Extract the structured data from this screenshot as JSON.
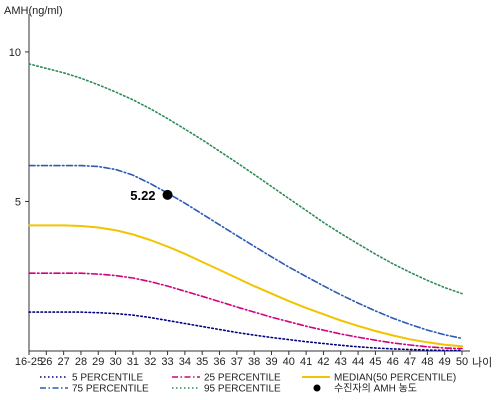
{
  "chart_data": {
    "type": "line",
    "ylabel": "AMH(ng/ml)",
    "xlabel": "나이",
    "ylim": [
      0,
      11
    ],
    "yticks": [
      5,
      10
    ],
    "x": [
      "16-25",
      "26",
      "27",
      "28",
      "29",
      "30",
      "31",
      "32",
      "33",
      "34",
      "35",
      "36",
      "37",
      "38",
      "39",
      "40",
      "41",
      "42",
      "43",
      "44",
      "45",
      "46",
      "47",
      "48",
      "49",
      "50"
    ],
    "grid": false,
    "legend_position": "bottom",
    "series": [
      {
        "name": "5 PERCENTILE",
        "color": "#000080",
        "dash": "dotted",
        "values": [
          1.3,
          1.3,
          1.3,
          1.3,
          1.28,
          1.25,
          1.2,
          1.12,
          1.02,
          0.92,
          0.82,
          0.72,
          0.62,
          0.53,
          0.45,
          0.38,
          0.31,
          0.25,
          0.19,
          0.14,
          0.1,
          0.07,
          0.05,
          0.03,
          0.02,
          0.02
        ]
      },
      {
        "name": "25 PERCENTILE",
        "color": "#d4007f",
        "dash": "dashdot",
        "values": [
          2.6,
          2.6,
          2.6,
          2.6,
          2.57,
          2.52,
          2.44,
          2.32,
          2.17,
          2.0,
          1.83,
          1.65,
          1.47,
          1.3,
          1.13,
          0.98,
          0.83,
          0.7,
          0.57,
          0.46,
          0.36,
          0.27,
          0.2,
          0.14,
          0.1,
          0.08
        ]
      },
      {
        "name": "MEDIAN(50 PERCENTILE)",
        "color": "#f2c300",
        "dash": "solid",
        "values": [
          4.2,
          4.2,
          4.2,
          4.18,
          4.13,
          4.04,
          3.9,
          3.71,
          3.49,
          3.25,
          2.98,
          2.71,
          2.44,
          2.17,
          1.92,
          1.67,
          1.44,
          1.23,
          1.02,
          0.84,
          0.67,
          0.52,
          0.39,
          0.29,
          0.21,
          0.16
        ]
      },
      {
        "name": "75 PERCENTILE",
        "color": "#2b5bb5",
        "dash": "dashdot",
        "values": [
          6.2,
          6.2,
          6.2,
          6.2,
          6.17,
          6.07,
          5.88,
          5.6,
          5.28,
          4.94,
          4.58,
          4.22,
          3.86,
          3.5,
          3.15,
          2.81,
          2.49,
          2.18,
          1.88,
          1.6,
          1.34,
          1.1,
          0.89,
          0.7,
          0.54,
          0.42
        ]
      },
      {
        "name": "95 PERCENTILE",
        "color": "#2e8b57",
        "dash": "dotted",
        "values": [
          9.6,
          9.45,
          9.3,
          9.12,
          8.9,
          8.66,
          8.4,
          8.1,
          7.77,
          7.42,
          7.06,
          6.68,
          6.3,
          5.9,
          5.5,
          5.1,
          4.7,
          4.3,
          3.93,
          3.58,
          3.24,
          2.92,
          2.63,
          2.36,
          2.12,
          1.92
        ]
      }
    ],
    "marker": {
      "name": "수진자의 AMH 농도",
      "x": "33",
      "y": 5.22,
      "label": "5.22",
      "color": "#000000"
    },
    "legend": [
      {
        "name": "5 PERCENTILE",
        "color": "#000080",
        "dash": "dotted"
      },
      {
        "name": "25 PERCENTILE",
        "color": "#d4007f",
        "dash": "dashdot"
      },
      {
        "name": "MEDIAN(50 PERCENTILE)",
        "color": "#f2c300",
        "dash": "solid"
      },
      {
        "name": "75 PERCENTILE",
        "color": "#2b5bb5",
        "dash": "dashdot"
      },
      {
        "name": "95 PERCENTILE",
        "color": "#2e8b57",
        "dash": "dotted"
      },
      {
        "name": "수진자의 AMH 농도",
        "color": "#000000",
        "dash": "marker"
      }
    ]
  }
}
